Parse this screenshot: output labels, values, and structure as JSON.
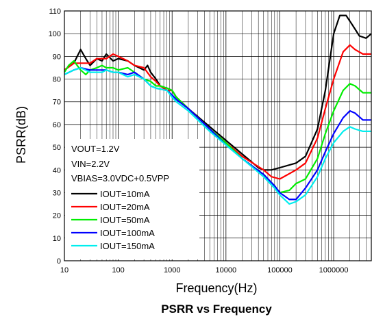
{
  "chart_data": {
    "type": "line",
    "title": "PSRR vs Frequency",
    "xlabel": "Frequency(Hz)",
    "ylabel": "PSRR(dB)",
    "xscale": "log",
    "xlim": [
      10,
      5000000
    ],
    "ylim": [
      0,
      110
    ],
    "x_tick_labels": [
      "10",
      "100",
      "1000",
      "10000",
      "100000",
      "1000000"
    ],
    "x_tick_values": [
      10,
      100,
      1000,
      10000,
      100000,
      1000000
    ],
    "y_tick_values": [
      0,
      10,
      20,
      30,
      40,
      50,
      60,
      70,
      80,
      90,
      100,
      110
    ],
    "grid": true,
    "conditions": [
      "VOUT=1.2V",
      "VIN=2.2V",
      "VBIAS=3.0VDC+0.5VPP"
    ],
    "legend_placement": "bottom-left",
    "series": [
      {
        "name": "IOUT=10mA",
        "color": "#000000",
        "points": [
          [
            10,
            84
          ],
          [
            15,
            87
          ],
          [
            20,
            93
          ],
          [
            25,
            89
          ],
          [
            30,
            86
          ],
          [
            40,
            89
          ],
          [
            50,
            88
          ],
          [
            60,
            91
          ],
          [
            80,
            88
          ],
          [
            100,
            89
          ],
          [
            150,
            88
          ],
          [
            200,
            86
          ],
          [
            300,
            84
          ],
          [
            350,
            86
          ],
          [
            400,
            83
          ],
          [
            500,
            80
          ],
          [
            600,
            77
          ],
          [
            800,
            76
          ],
          [
            1000,
            75
          ],
          [
            1200,
            72
          ],
          [
            2000,
            67
          ],
          [
            5000,
            59
          ],
          [
            10000,
            53
          ],
          [
            20000,
            47
          ],
          [
            40000,
            41
          ],
          [
            50000,
            40
          ],
          [
            70000,
            40
          ],
          [
            100000,
            41
          ],
          [
            200000,
            43
          ],
          [
            300000,
            46
          ],
          [
            500000,
            58
          ],
          [
            700000,
            75
          ],
          [
            1000000,
            100
          ],
          [
            1300000,
            108
          ],
          [
            1700000,
            108
          ],
          [
            2200000,
            104
          ],
          [
            3000000,
            99
          ],
          [
            4000000,
            98
          ],
          [
            5000000,
            100
          ]
        ]
      },
      {
        "name": "IOUT=20mA",
        "color": "#ff0000",
        "points": [
          [
            10,
            84
          ],
          [
            15,
            87
          ],
          [
            20,
            87
          ],
          [
            30,
            87
          ],
          [
            40,
            89
          ],
          [
            50,
            89
          ],
          [
            60,
            89
          ],
          [
            80,
            91
          ],
          [
            100,
            90
          ],
          [
            150,
            88
          ],
          [
            200,
            86
          ],
          [
            300,
            85
          ],
          [
            400,
            81
          ],
          [
            500,
            79
          ],
          [
            600,
            77
          ],
          [
            800,
            75
          ],
          [
            1000,
            75
          ],
          [
            1200,
            72
          ],
          [
            2000,
            67
          ],
          [
            5000,
            58
          ],
          [
            10000,
            52
          ],
          [
            20000,
            46
          ],
          [
            50000,
            40
          ],
          [
            70000,
            37
          ],
          [
            100000,
            36
          ],
          [
            200000,
            40
          ],
          [
            300000,
            43
          ],
          [
            500000,
            54
          ],
          [
            700000,
            67
          ],
          [
            1000000,
            80
          ],
          [
            1500000,
            92
          ],
          [
            2000000,
            95
          ],
          [
            2500000,
            93
          ],
          [
            3500000,
            91
          ],
          [
            5000000,
            91
          ]
        ]
      },
      {
        "name": "IOUT=50mA",
        "color": "#00ee00",
        "points": [
          [
            10,
            83
          ],
          [
            12,
            86
          ],
          [
            15,
            88
          ],
          [
            20,
            84
          ],
          [
            25,
            82
          ],
          [
            30,
            84
          ],
          [
            40,
            85
          ],
          [
            50,
            86
          ],
          [
            60,
            85
          ],
          [
            80,
            85
          ],
          [
            100,
            84
          ],
          [
            150,
            85
          ],
          [
            200,
            83
          ],
          [
            300,
            80
          ],
          [
            400,
            79
          ],
          [
            500,
            77
          ],
          [
            600,
            77
          ],
          [
            800,
            76
          ],
          [
            1000,
            75
          ],
          [
            1200,
            72
          ],
          [
            2000,
            67
          ],
          [
            5000,
            58
          ],
          [
            10000,
            52
          ],
          [
            20000,
            45
          ],
          [
            50000,
            38
          ],
          [
            80000,
            33
          ],
          [
            100000,
            30
          ],
          [
            150000,
            31
          ],
          [
            200000,
            34
          ],
          [
            300000,
            36
          ],
          [
            500000,
            45
          ],
          [
            700000,
            56
          ],
          [
            1000000,
            66
          ],
          [
            1500000,
            75
          ],
          [
            2000000,
            78
          ],
          [
            2500000,
            77
          ],
          [
            3500000,
            74
          ],
          [
            5000000,
            74
          ]
        ]
      },
      {
        "name": "IOUT=100mA",
        "color": "#0000ff",
        "points": [
          [
            10,
            82
          ],
          [
            15,
            84
          ],
          [
            20,
            85
          ],
          [
            30,
            84
          ],
          [
            40,
            84
          ],
          [
            50,
            84
          ],
          [
            60,
            84
          ],
          [
            80,
            83
          ],
          [
            100,
            83
          ],
          [
            150,
            82
          ],
          [
            200,
            83
          ],
          [
            300,
            80
          ],
          [
            400,
            77
          ],
          [
            500,
            76
          ],
          [
            800,
            75
          ],
          [
            1000,
            73
          ],
          [
            1200,
            71
          ],
          [
            2000,
            67
          ],
          [
            5000,
            58
          ],
          [
            10000,
            51
          ],
          [
            20000,
            45
          ],
          [
            50000,
            38
          ],
          [
            80000,
            33
          ],
          [
            100000,
            30
          ],
          [
            150000,
            27
          ],
          [
            200000,
            27
          ],
          [
            300000,
            32
          ],
          [
            500000,
            40
          ],
          [
            700000,
            48
          ],
          [
            1000000,
            56
          ],
          [
            1500000,
            63
          ],
          [
            2000000,
            66
          ],
          [
            2500000,
            65
          ],
          [
            3500000,
            62
          ],
          [
            5000000,
            62
          ]
        ]
      },
      {
        "name": "IOUT=150mA",
        "color": "#00eeee",
        "points": [
          [
            10,
            82
          ],
          [
            15,
            84
          ],
          [
            20,
            85
          ],
          [
            30,
            83
          ],
          [
            40,
            83
          ],
          [
            50,
            83
          ],
          [
            60,
            84
          ],
          [
            80,
            83
          ],
          [
            100,
            83
          ],
          [
            150,
            81
          ],
          [
            200,
            82
          ],
          [
            300,
            80
          ],
          [
            400,
            77
          ],
          [
            500,
            76
          ],
          [
            800,
            75
          ],
          [
            1000,
            72
          ],
          [
            1200,
            70
          ],
          [
            2000,
            66
          ],
          [
            5000,
            57
          ],
          [
            10000,
            51
          ],
          [
            20000,
            45
          ],
          [
            50000,
            37
          ],
          [
            80000,
            32
          ],
          [
            100000,
            29
          ],
          [
            150000,
            25
          ],
          [
            200000,
            26
          ],
          [
            300000,
            29
          ],
          [
            500000,
            37
          ],
          [
            700000,
            45
          ],
          [
            1000000,
            52
          ],
          [
            1500000,
            57
          ],
          [
            2000000,
            59
          ],
          [
            2500000,
            58
          ],
          [
            3500000,
            57
          ],
          [
            5000000,
            57
          ]
        ]
      }
    ]
  }
}
